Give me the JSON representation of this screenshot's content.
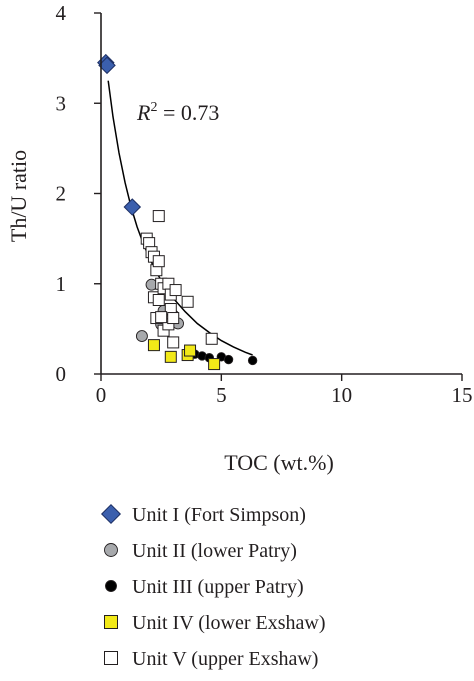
{
  "chart_data": {
    "type": "scatter",
    "xlabel": "TOC (wt.%)",
    "ylabel": "Th/U ratio",
    "xlim": [
      0,
      15
    ],
    "ylim": [
      0,
      4
    ],
    "xticks": [
      "0",
      "5",
      "10",
      "15"
    ],
    "yticks": [
      "0",
      "1",
      "2",
      "3",
      "4"
    ],
    "grid": false,
    "legend_position": "bottom",
    "annotation": {
      "symbol": "R",
      "superscript": "2",
      "text": " = 0.73"
    },
    "trendline": {
      "type": "curve fit",
      "points": [
        [
          0.3,
          3.25
        ],
        [
          0.5,
          2.85
        ],
        [
          0.75,
          2.45
        ],
        [
          1.0,
          2.12
        ],
        [
          1.25,
          1.85
        ],
        [
          1.5,
          1.63
        ],
        [
          1.75,
          1.45
        ],
        [
          2.0,
          1.29
        ],
        [
          2.3,
          1.13
        ],
        [
          2.6,
          0.99
        ],
        [
          3.0,
          0.84
        ],
        [
          3.5,
          0.69
        ],
        [
          4.0,
          0.56
        ],
        [
          4.5,
          0.46
        ],
        [
          5.0,
          0.37
        ],
        [
          5.5,
          0.3
        ],
        [
          6.0,
          0.24
        ],
        [
          6.3,
          0.21
        ]
      ]
    },
    "series": [
      {
        "name": "Unit I (Fort Simpson)",
        "marker": "diamond",
        "color": "#3b5fad",
        "points": [
          [
            0.2,
            3.45
          ],
          [
            0.25,
            3.42
          ],
          [
            1.3,
            1.85
          ]
        ]
      },
      {
        "name": "Unit II (lower Patry)",
        "marker": "circle",
        "color": "#a7a9ac",
        "points": [
          [
            1.7,
            0.42
          ],
          [
            2.1,
            0.99
          ],
          [
            2.3,
            0.84
          ],
          [
            2.5,
            0.55
          ],
          [
            2.6,
            0.7
          ],
          [
            2.8,
            0.6
          ],
          [
            3.0,
            0.65
          ],
          [
            3.2,
            0.56
          ]
        ]
      },
      {
        "name": "Unit III (upper Patry)",
        "marker": "circle",
        "color": "#000000",
        "points": [
          [
            3.9,
            0.22
          ],
          [
            4.2,
            0.2
          ],
          [
            4.5,
            0.18
          ],
          [
            5.0,
            0.19
          ],
          [
            5.3,
            0.16
          ],
          [
            6.3,
            0.15
          ]
        ]
      },
      {
        "name": "Unit IV (lower Exshaw)",
        "marker": "square",
        "color": "#f2e918",
        "points": [
          [
            2.2,
            0.32
          ],
          [
            2.9,
            0.19
          ],
          [
            3.6,
            0.21
          ],
          [
            3.7,
            0.26
          ],
          [
            4.7,
            0.11
          ]
        ]
      },
      {
        "name": "Unit V (upper Exshaw)",
        "marker": "square",
        "color": "#ffffff",
        "points": [
          [
            1.9,
            1.5
          ],
          [
            2.0,
            1.45
          ],
          [
            2.1,
            1.35
          ],
          [
            2.2,
            1.3
          ],
          [
            2.4,
            1.75
          ],
          [
            2.3,
            1.15
          ],
          [
            2.4,
            1.25
          ],
          [
            2.5,
            1.0
          ],
          [
            2.2,
            0.85
          ],
          [
            2.4,
            0.82
          ],
          [
            2.6,
            0.95
          ],
          [
            2.8,
            1.0
          ],
          [
            2.9,
            0.88
          ],
          [
            3.1,
            0.93
          ],
          [
            2.6,
            0.48
          ],
          [
            2.8,
            0.55
          ],
          [
            2.9,
            0.72
          ],
          [
            3.0,
            0.62
          ],
          [
            3.6,
            0.8
          ],
          [
            2.3,
            0.62
          ],
          [
            2.5,
            0.63
          ],
          [
            3.0,
            0.35
          ],
          [
            4.6,
            0.39
          ]
        ]
      }
    ]
  }
}
